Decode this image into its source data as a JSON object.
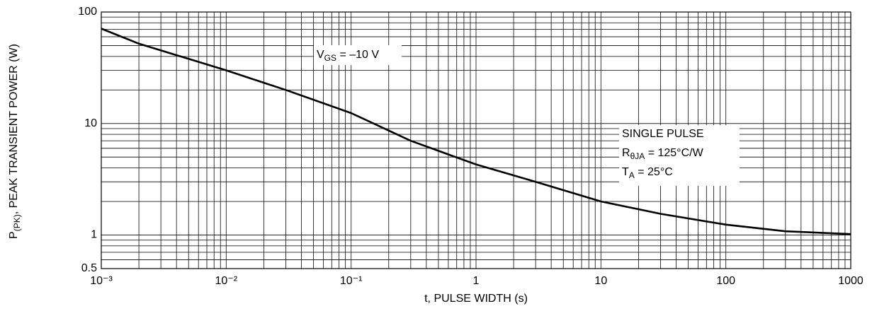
{
  "chart_data": {
    "type": "line",
    "x_label": "t, PULSE WIDTH (s)",
    "y_label_parts": [
      "P",
      "(PK)",
      ", PEAK TRANSIENT POWER (W)"
    ],
    "x": [
      0.001,
      0.002,
      0.005,
      0.01,
      0.03,
      0.1,
      0.3,
      1,
      3,
      10,
      30,
      100,
      300,
      1000
    ],
    "series": [
      {
        "color": "#000000",
        "values": [
          71,
          52,
          38,
          30,
          20,
          12.4,
          7,
          4.3,
          3,
          2.0,
          1.55,
          1.24,
          1.08,
          1.02
        ]
      }
    ],
    "xlim": [
      0.001,
      1000
    ],
    "ylim": [
      0.5,
      100
    ],
    "xticks": [
      {
        "value": 0.001,
        "label": "10⁻³"
      },
      {
        "value": 0.01,
        "label": "10⁻²"
      },
      {
        "value": 0.1,
        "label": "10⁻¹"
      },
      1,
      10,
      100,
      1000
    ],
    "yticks": [
      0.5,
      1,
      10,
      100
    ],
    "log_x": true,
    "log_y": true,
    "grid": true,
    "minor_grid": true,
    "annotations": [
      {
        "parts": [
          "V",
          "GS",
          " = –10 V"
        ]
      },
      {
        "parts": [
          "SINGLE PULSE"
        ]
      },
      {
        "parts": [
          "R",
          "θJA",
          " = 125°C/W"
        ]
      },
      {
        "parts": [
          "T",
          "A",
          " = 25°C"
        ]
      }
    ]
  }
}
